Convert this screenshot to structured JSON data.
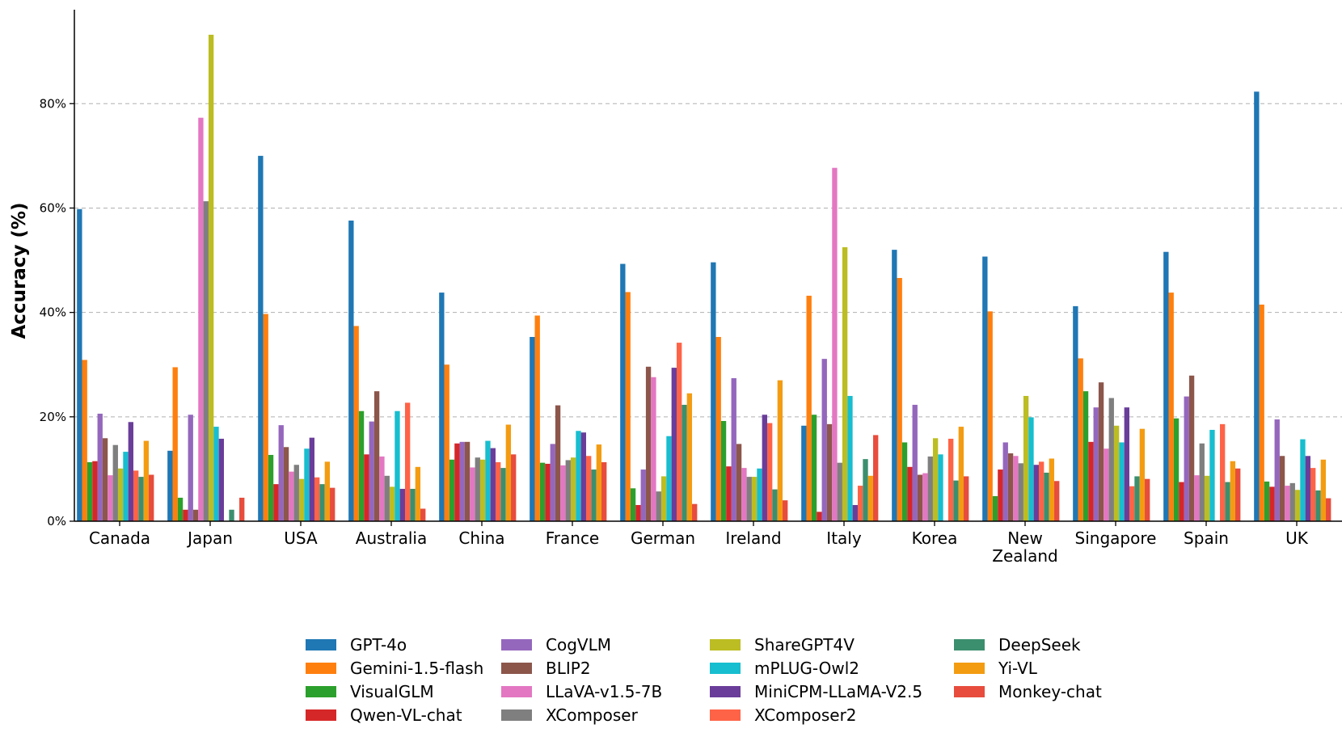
{
  "chart_data": {
    "type": "bar",
    "title": "",
    "xlabel": "",
    "ylabel": "Accuracy (%)",
    "ylim": [
      0,
      98
    ],
    "yticks": [
      0,
      20,
      40,
      60,
      80
    ],
    "ytick_labels": [
      "0%",
      "20%",
      "40%",
      "60%",
      "80%"
    ],
    "grid": "horizontal dashed",
    "legend_position": "bottom",
    "categories": [
      "Canada",
      "Japan",
      "USA",
      "Australia",
      "China",
      "France",
      "German",
      "Ireland",
      "Italy",
      "Korea",
      "New Zealand",
      "Singapore",
      "Spain",
      "UK"
    ],
    "series": [
      {
        "name": "GPT-4o",
        "color": "#1f77b4",
        "values": [
          59.8,
          13.5,
          70.0,
          57.6,
          43.8,
          35.3,
          49.3,
          49.6,
          18.3,
          52.0,
          50.7,
          41.2,
          51.6,
          82.3
        ]
      },
      {
        "name": "Gemini-1.5-flash",
        "color": "#ff7f0e",
        "values": [
          30.9,
          29.5,
          39.7,
          37.4,
          30.0,
          39.4,
          43.9,
          35.3,
          43.2,
          46.6,
          40.2,
          31.2,
          43.8,
          41.5
        ]
      },
      {
        "name": "VisualGLM",
        "color": "#2ca02c",
        "values": [
          11.3,
          4.5,
          12.7,
          21.1,
          11.8,
          11.2,
          6.3,
          19.2,
          20.4,
          15.1,
          4.8,
          24.9,
          19.7,
          7.6
        ]
      },
      {
        "name": "Qwen-VL-chat",
        "color": "#d62728",
        "values": [
          11.5,
          2.2,
          7.1,
          12.8,
          14.9,
          11.0,
          3.1,
          10.5,
          1.8,
          10.4,
          9.9,
          15.2,
          7.5,
          6.6
        ]
      },
      {
        "name": "CogVLM",
        "color": "#9467bd",
        "values": [
          20.6,
          20.4,
          18.4,
          19.1,
          15.2,
          14.8,
          9.9,
          27.4,
          31.1,
          22.3,
          15.1,
          21.8,
          23.9,
          19.5
        ]
      },
      {
        "name": "BLIP2",
        "color": "#8c564b",
        "values": [
          15.9,
          2.2,
          14.2,
          24.9,
          15.2,
          22.2,
          29.6,
          14.8,
          18.6,
          8.9,
          13.0,
          26.6,
          27.9,
          12.5
        ]
      },
      {
        "name": "LLaVA-v1.5-7B",
        "color": "#e377c2",
        "values": [
          8.8,
          77.3,
          9.5,
          12.4,
          10.3,
          10.7,
          27.6,
          10.2,
          67.7,
          9.2,
          12.5,
          13.9,
          8.8,
          6.8
        ]
      },
      {
        "name": "XComposer",
        "color": "#7f7f7f",
        "values": [
          14.6,
          61.3,
          10.8,
          8.7,
          12.2,
          11.7,
          5.7,
          8.5,
          11.2,
          12.4,
          11.1,
          23.6,
          14.9,
          7.3
        ]
      },
      {
        "name": "ShareGPT4V",
        "color": "#bcbd22",
        "values": [
          10.1,
          93.2,
          8.1,
          6.6,
          11.8,
          12.2,
          8.6,
          8.5,
          52.5,
          15.9,
          24.0,
          18.3,
          8.7,
          6.0
        ]
      },
      {
        "name": "mPLUG-Owl2",
        "color": "#17becf",
        "values": [
          13.3,
          18.1,
          13.9,
          21.1,
          15.4,
          17.3,
          16.3,
          10.1,
          24.0,
          12.8,
          19.9,
          15.1,
          17.5,
          15.7
        ]
      },
      {
        "name": "MiniCPM-LLaMA-V2.5",
        "color": "#6a3d9a",
        "values": [
          19.0,
          15.8,
          16.0,
          6.2,
          14.0,
          17.0,
          29.4,
          20.4,
          3.1,
          0,
          10.8,
          21.8,
          0,
          12.5
        ]
      },
      {
        "name": "XComposer2",
        "color": "#ff6347",
        "values": [
          9.7,
          0,
          8.4,
          22.7,
          11.3,
          12.5,
          34.2,
          18.8,
          6.8,
          15.8,
          11.4,
          6.7,
          18.6,
          10.2
        ]
      },
      {
        "name": "DeepSeek",
        "color": "#3b8f6e",
        "values": [
          8.5,
          2.2,
          7.1,
          6.2,
          10.2,
          9.9,
          22.3,
          6.1,
          11.9,
          7.8,
          9.3,
          8.6,
          7.5,
          5.9
        ]
      },
      {
        "name": "Yi-VL",
        "color": "#f39c12",
        "values": [
          15.4,
          0,
          11.4,
          10.4,
          18.5,
          14.7,
          24.5,
          27.0,
          8.7,
          18.1,
          12.0,
          17.7,
          11.5,
          11.8
        ]
      },
      {
        "name": "Monkey-chat",
        "color": "#e74c3c",
        "values": [
          8.9,
          4.5,
          6.4,
          2.4,
          12.8,
          11.3,
          3.3,
          4.0,
          16.5,
          8.6,
          7.7,
          8.1,
          10.1,
          4.4
        ]
      }
    ]
  }
}
